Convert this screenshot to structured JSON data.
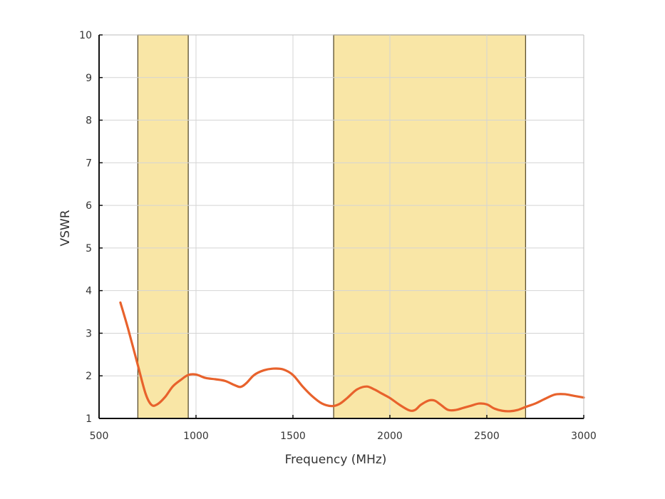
{
  "chart_data": {
    "type": "line",
    "xlabel": "Frequency (MHz)",
    "ylabel": "VSWR",
    "xlim": [
      500,
      3000
    ],
    "ylim": [
      1,
      10
    ],
    "xticks": [
      500,
      1000,
      1500,
      2000,
      2500,
      3000
    ],
    "yticks": [
      1,
      2,
      3,
      4,
      5,
      6,
      7,
      8,
      9,
      10
    ],
    "grid": true,
    "highlight_bands": [
      {
        "x0": 700,
        "x1": 960
      },
      {
        "x0": 1710,
        "x1": 2700
      }
    ],
    "series": [
      {
        "x": [
          610,
          650,
          700,
          740,
          770,
          800,
          840,
          880,
          920,
          960,
          1000,
          1050,
          1100,
          1150,
          1200,
          1230,
          1260,
          1300,
          1350,
          1400,
          1450,
          1500,
          1550,
          1600,
          1650,
          1700,
          1740,
          1780,
          1830,
          1880,
          1920,
          1960,
          2000,
          2050,
          2100,
          2130,
          2160,
          2200,
          2230,
          2260,
          2300,
          2340,
          2380,
          2420,
          2460,
          2500,
          2540,
          2580,
          2620,
          2660,
          2700,
          2750,
          2800,
          2850,
          2900,
          2950,
          3000
        ],
        "y": [
          3.72,
          3.1,
          2.25,
          1.58,
          1.32,
          1.33,
          1.5,
          1.75,
          1.9,
          2.02,
          2.03,
          1.95,
          1.92,
          1.88,
          1.78,
          1.74,
          1.83,
          2.02,
          2.13,
          2.17,
          2.15,
          2.02,
          1.75,
          1.52,
          1.35,
          1.29,
          1.34,
          1.48,
          1.68,
          1.75,
          1.68,
          1.58,
          1.48,
          1.32,
          1.19,
          1.2,
          1.32,
          1.42,
          1.42,
          1.33,
          1.2,
          1.2,
          1.25,
          1.3,
          1.35,
          1.33,
          1.23,
          1.18,
          1.17,
          1.2,
          1.27,
          1.35,
          1.46,
          1.56,
          1.57,
          1.53,
          1.49
        ],
        "color": "#e8622c"
      }
    ],
    "colors": {
      "band_fill": "#f9e6a6",
      "band_stroke": "#5a4e2e",
      "grid": "#d4d4d4",
      "axis": "#111111"
    }
  }
}
